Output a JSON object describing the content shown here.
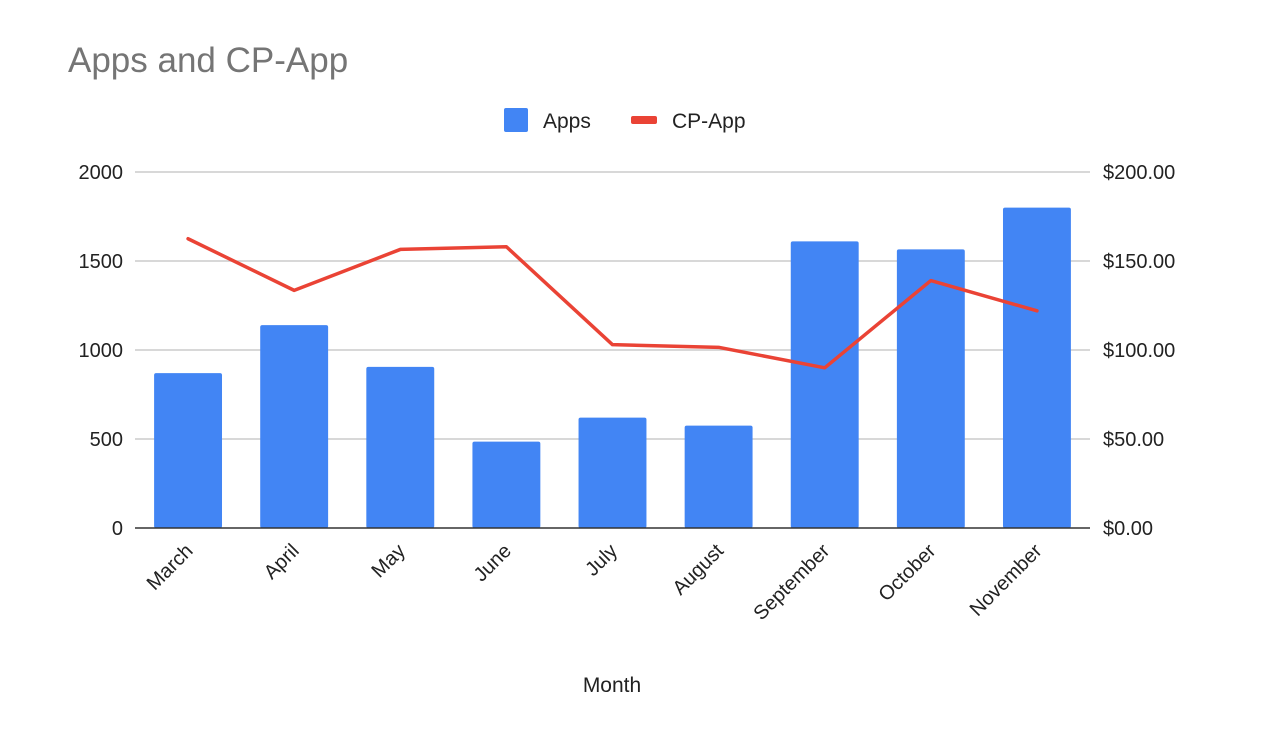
{
  "chart_data": {
    "type": "bar",
    "title": "Apps and CP-App",
    "xlabel": "Month",
    "ylabel": "",
    "y2label": "",
    "categories": [
      "March",
      "April",
      "May",
      "June",
      "July",
      "August",
      "September",
      "October",
      "November"
    ],
    "series": [
      {
        "name": "Apps",
        "type": "bar",
        "axis": "left",
        "color": "#4285f4",
        "values": [
          870,
          1140,
          905,
          485,
          620,
          575,
          1610,
          1565,
          1800
        ]
      },
      {
        "name": "CP-App",
        "type": "line",
        "axis": "right",
        "color": "#ea4335",
        "values": [
          162.5,
          133.5,
          156.5,
          158,
          103,
          101.5,
          90,
          139,
          122
        ]
      }
    ],
    "ylim": [
      0,
      2000
    ],
    "y_ticks": [
      0,
      500,
      1000,
      1500,
      2000
    ],
    "y_tick_labels": [
      "0",
      "500",
      "1000",
      "1500",
      "2000"
    ],
    "y2lim": [
      0,
      200
    ],
    "y2_ticks": [
      0,
      50,
      100,
      150,
      200
    ],
    "y2_tick_labels": [
      "$0.00",
      "$50.00",
      "$100.00",
      "$150.00",
      "$200.00"
    ],
    "grid": true,
    "legend_position": "top-center",
    "colors": {
      "gridline": "#cccccc",
      "baseline": "#333333",
      "title": "#757575",
      "text": "#222222"
    }
  }
}
